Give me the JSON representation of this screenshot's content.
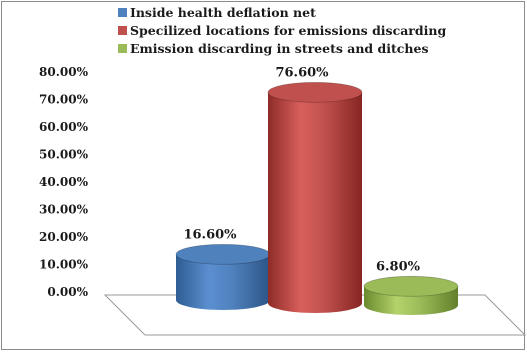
{
  "chart_data": {
    "type": "bar",
    "title": "",
    "xlabel": "",
    "ylabel": "",
    "ylim": [
      0,
      0.8
    ],
    "yticks": [
      "0.00%",
      "10.00%",
      "20.00%",
      "30.00%",
      "40.00%",
      "50.00%",
      "60.00%",
      "70.00%",
      "80.00%"
    ],
    "grid": false,
    "legend_position": "top",
    "series": [
      {
        "name": "Inside health deflation net",
        "value": 0.166,
        "label": "16.60%",
        "color": "#4f81bd"
      },
      {
        "name": "Specilized locations for emissions discarding",
        "value": 0.766,
        "label": "76.60%",
        "color": "#c0504d"
      },
      {
        "name": "Emission discarding in streets and ditches",
        "value": 0.068,
        "label": "6.80%",
        "color": "#9bbb59"
      }
    ]
  }
}
